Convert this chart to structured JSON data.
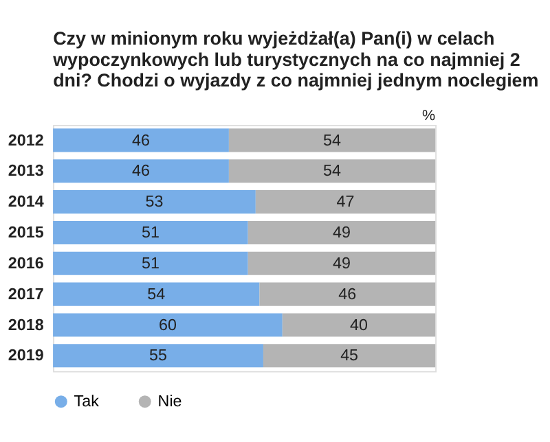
{
  "chart_data": {
    "type": "bar",
    "orientation": "horizontal",
    "stacked": true,
    "data_labels": true,
    "legend": "bottom",
    "grid": false,
    "title": "Czy w minionym roku wyjeżdżał(a) Pan(i) w celach wypoczynkowych lub turystycznych na co najmniej 2 dni? Chodzi o wyjazdy z co najmniej jednym noclegiem",
    "annotations": [
      "%"
    ],
    "categories": [
      "2012",
      "2013",
      "2014",
      "2015",
      "2016",
      "2017",
      "2018",
      "2019"
    ],
    "series": [
      {
        "name": "Tak",
        "color": "#78aee8",
        "values": [
          46,
          46,
          53,
          51,
          51,
          54,
          60,
          55
        ]
      },
      {
        "name": "Nie",
        "color": "#b4b4b4",
        "values": [
          54,
          54,
          47,
          49,
          49,
          46,
          40,
          45
        ]
      }
    ]
  }
}
